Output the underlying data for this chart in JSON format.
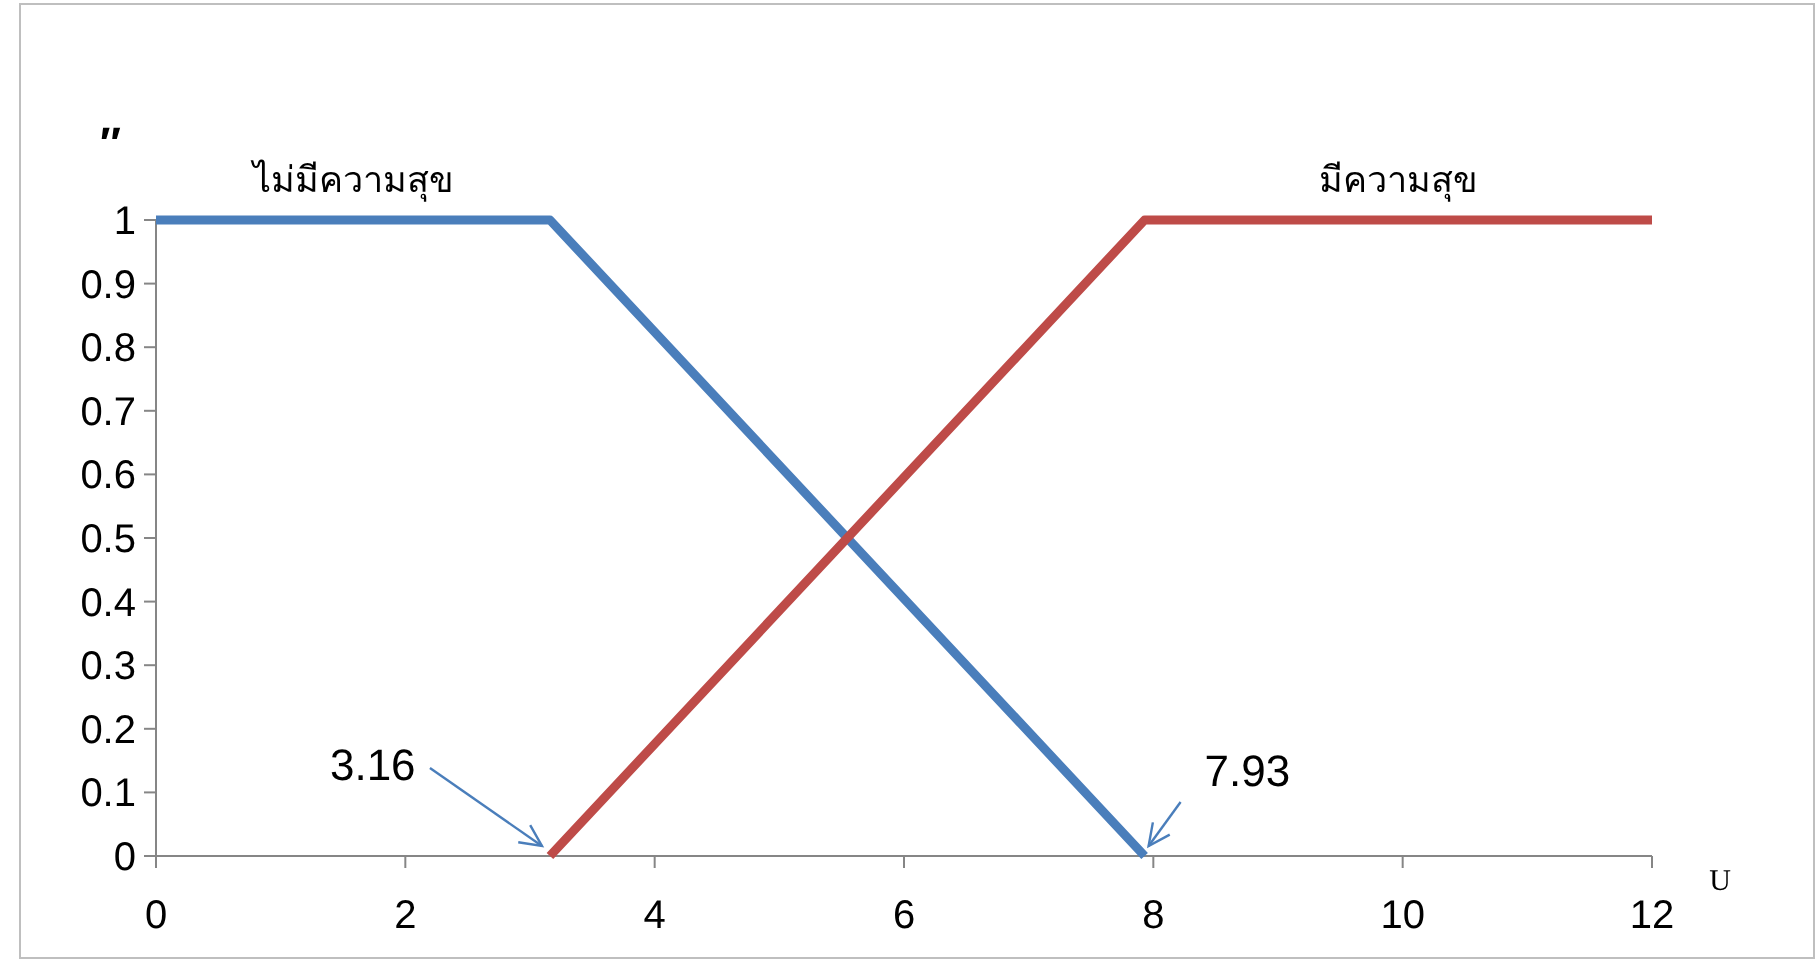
{
  "chart_data": {
    "type": "line",
    "xlabel": "U",
    "ylabel": "″",
    "xlim": [
      0,
      12
    ],
    "xticks": [
      0,
      2,
      4,
      6,
      8,
      10,
      12
    ],
    "ylim": [
      0,
      1
    ],
    "yticks": [
      0,
      0.1,
      0.2,
      0.3,
      0.4,
      0.5,
      0.6,
      0.7,
      0.8,
      0.9,
      1
    ],
    "series": [
      {
        "name": "ไม่มีความสุข",
        "color": "#4a7ebb",
        "x": [
          0,
          3.16,
          7.93
        ],
        "values": [
          1,
          1,
          0
        ]
      },
      {
        "name": "มีความสุข",
        "color": "#be4b48",
        "x": [
          3.16,
          7.93,
          12
        ],
        "values": [
          0,
          1,
          1
        ]
      }
    ],
    "annotations": [
      {
        "text": "3.16",
        "x": 3.16,
        "y": 0
      },
      {
        "text": "7.93",
        "x": 7.93,
        "y": 0
      }
    ]
  }
}
